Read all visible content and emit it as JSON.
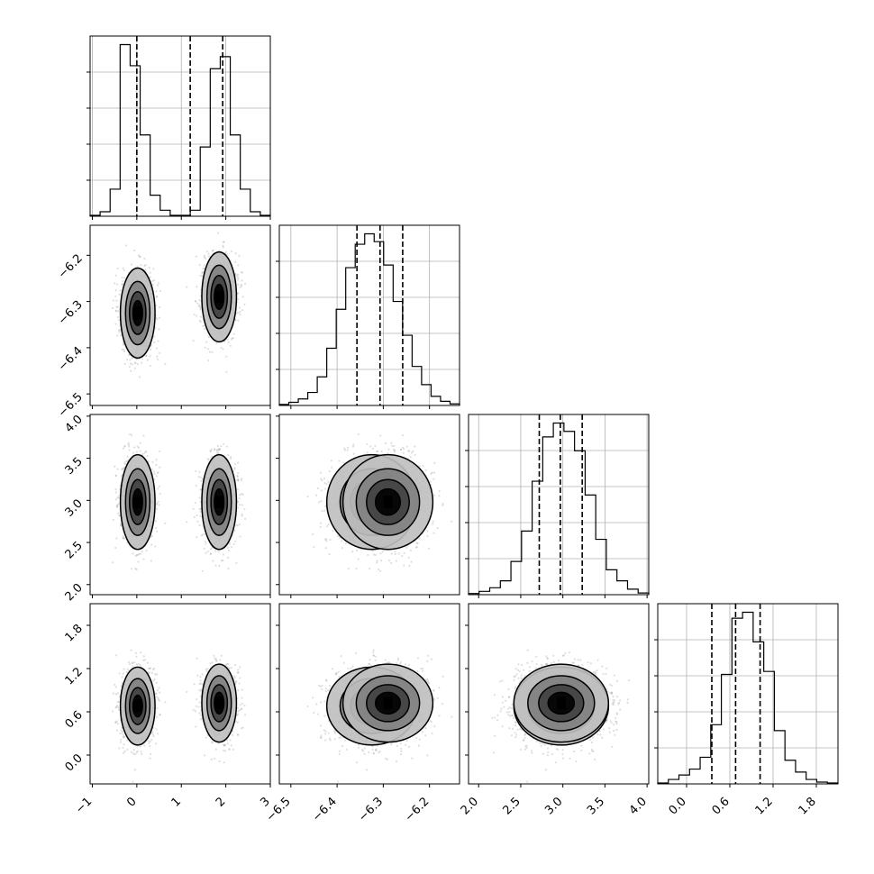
{
  "chart_data": {
    "type": "corner",
    "title": "",
    "parameters": [
      {
        "ticks": [
          -1,
          0,
          1,
          2,
          3
        ],
        "tick_labels": [
          "−1",
          "0",
          "1",
          "2",
          "3"
        ],
        "range": [
          -1.05,
          3.0
        ]
      },
      {
        "ticks": [
          -6.5,
          -6.4,
          -6.3,
          -6.2
        ],
        "tick_labels": [
          "−6.5",
          "−6.4",
          "−6.3",
          "−6.2"
        ],
        "range": [
          -6.525,
          -6.135
        ]
      },
      {
        "ticks": [
          2.0,
          2.5,
          3.0,
          3.5,
          4.0
        ],
        "tick_labels": [
          "2.0",
          "2.5",
          "3.0",
          "3.5",
          "4.0"
        ],
        "range": [
          1.88,
          4.02
        ]
      },
      {
        "ticks": [
          0.0,
          0.6,
          1.2,
          1.8
        ],
        "tick_labels": [
          "0.0",
          "0.6",
          "1.2",
          "1.8"
        ],
        "range": [
          -0.4,
          2.1
        ]
      }
    ],
    "histograms": [
      {
        "counts": [
          0.3,
          1.5,
          9,
          57,
          50,
          27,
          7,
          2,
          0.3,
          0.3,
          2,
          23,
          49,
          53,
          27,
          9,
          1.5,
          0.3
        ],
        "quantiles": [
          0.0,
          1.2,
          1.93
        ]
      },
      {
        "counts": [
          0.4,
          1.2,
          2.5,
          5,
          11,
          22,
          37,
          53,
          62,
          66,
          63,
          54,
          40,
          27,
          15,
          8,
          3.5,
          1.6,
          0.6
        ],
        "quantiles": [
          -6.357,
          -6.307,
          -6.258
        ]
      },
      {
        "counts": [
          0.4,
          1.2,
          2.5,
          5,
          12,
          23,
          41,
          57,
          62,
          59,
          52,
          36,
          20,
          9,
          5,
          2,
          0.6
        ],
        "quantiles": [
          2.72,
          2.97,
          3.23
        ]
      },
      {
        "counts": [
          0.3,
          1.5,
          3,
          5,
          9,
          20,
          37,
          56,
          58,
          48,
          38,
          18,
          8,
          4,
          1.5,
          0.6,
          0.3
        ],
        "quantiles": [
          0.35,
          0.68,
          1.02
        ]
      }
    ],
    "distribution": {
      "modes": [
        {
          "p0": 0.02,
          "p1": -6.325,
          "p2": 2.98,
          "p3": 0.68,
          "weight": 0.5
        },
        {
          "p0": 1.85,
          "p1": -6.29,
          "p2": 2.98,
          "p3": 0.72,
          "weight": 0.5
        }
      ],
      "sigma": [
        0.18,
        0.045,
        0.26,
        0.25
      ]
    },
    "grid": true,
    "quantile_style": "dashed"
  }
}
